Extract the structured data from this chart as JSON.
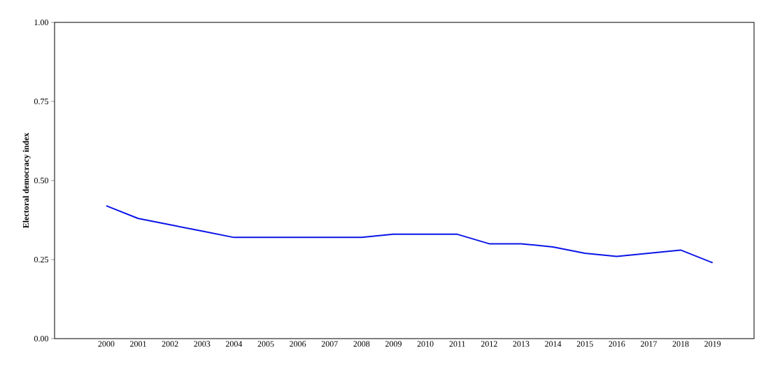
{
  "chart_data": {
    "type": "line",
    "ylabel": "Electoral democracy index",
    "categories": [
      "2000",
      "2001",
      "2002",
      "2003",
      "2004",
      "2005",
      "2006",
      "2007",
      "2008",
      "2009",
      "2010",
      "2011",
      "2012",
      "2013",
      "2014",
      "2015",
      "2016",
      "2017",
      "2018",
      "2019"
    ],
    "series": [
      {
        "color": "#0a14e6",
        "values": [
          0.42,
          0.38,
          0.36,
          0.34,
          0.32,
          0.32,
          0.32,
          0.32,
          0.32,
          0.33,
          0.33,
          0.33,
          0.3,
          0.3,
          0.29,
          0.27,
          0.26,
          0.27,
          0.28,
          0.24
        ]
      }
    ],
    "ylim": [
      0,
      1
    ],
    "yticks": [
      {
        "value": 0,
        "label": "0.00"
      },
      {
        "value": 0.25,
        "label": "0.25"
      },
      {
        "value": 0.5,
        "label": "0.50"
      },
      {
        "value": 0.75,
        "label": "0.75"
      },
      {
        "value": 1,
        "label": "1.00"
      }
    ],
    "marker": "none",
    "line_style": "solid"
  }
}
